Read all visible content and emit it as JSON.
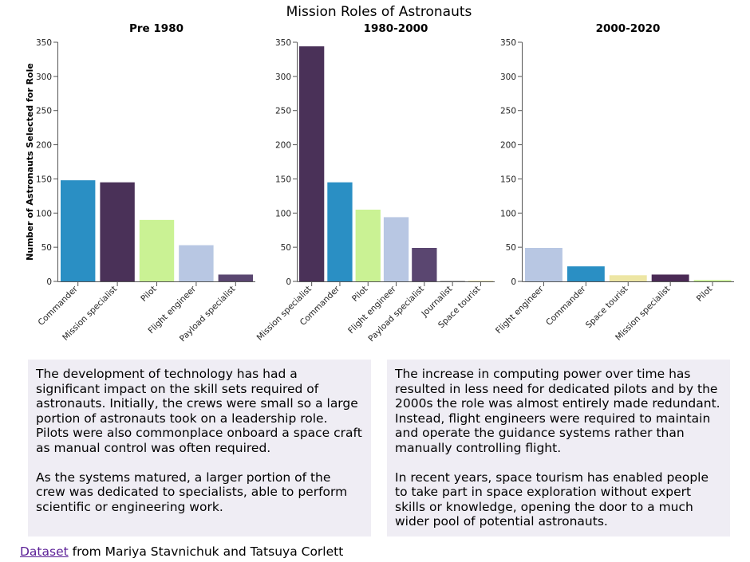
{
  "chart_data": {
    "title": "Mission Roles of Astronauts",
    "ylabel": "Number of Astronauts Selected for Role",
    "ylim": [
      0,
      350
    ],
    "yticks": [
      0,
      50,
      100,
      150,
      200,
      250,
      300,
      350
    ],
    "charts": [
      {
        "type": "bar",
        "title": "Pre 1980",
        "categories": [
          "Commander",
          "Mission specialist",
          "Pilot",
          "Flight engineer",
          "Payload specialist"
        ],
        "values": [
          148,
          145,
          90,
          53,
          10
        ],
        "colors": [
          "#2a8fc4",
          "#4a3158",
          "#caf294",
          "#b8c7e3",
          "#5a4670"
        ]
      },
      {
        "type": "bar",
        "title": "1980-2000",
        "categories": [
          "Mission specialist",
          "Commander",
          "Pilot",
          "Flight engineer",
          "Payload specialist",
          "Journalist",
          "Space tourist"
        ],
        "values": [
          344,
          145,
          105,
          94,
          49,
          1,
          1
        ],
        "colors": [
          "#4a3158",
          "#2a8fc4",
          "#caf294",
          "#b8c7e3",
          "#5a4670",
          "#aaaaaa",
          "#e5e0a8"
        ]
      },
      {
        "type": "bar",
        "title": "2000-2020",
        "categories": [
          "Flight engineer",
          "Commander",
          "Space tourist",
          "Mission specialist",
          "Pilot"
        ],
        "values": [
          49,
          22,
          9,
          10,
          2
        ],
        "colors": [
          "#b8c7e3",
          "#2a8fc4",
          "#ede6a4",
          "#4a2a55",
          "#caf294"
        ]
      }
    ]
  },
  "text_panels": {
    "left": [
      "The development of technology has had a significant impact on the skill sets required of astronauts. Initially, the crews were small so a large portion of astronauts took on a leadership role. Pilots were also commonplace onboard a space craft as manual control was often required.",
      "As the systems matured, a larger portion of the crew was dedicated to specialists, able to perform scientific or engineering work."
    ],
    "right": [
      "The increase in computing power over time has resulted in less need for dedicated pilots and by the 2000s the role was almost entirely made redundant. Instead, flight engineers were required to maintain and operate the guidance systems rather than manually controlling flight.",
      "In recent years, space tourism has enabled people to take part in space exploration without expert skills or knowledge, opening the door to a much wider pool of potential astronauts."
    ]
  },
  "footer": {
    "link_text": "Dataset",
    "suffix": " from Mariya Stavnichuk and Tatsuya Corlett"
  }
}
